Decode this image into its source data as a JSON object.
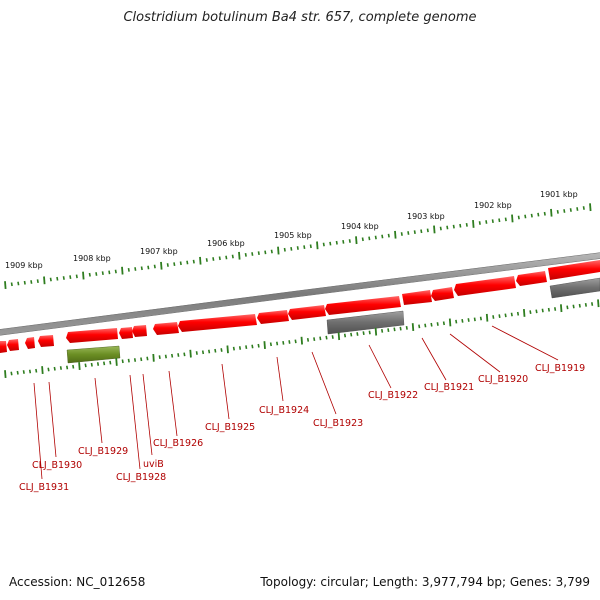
{
  "title": "Clostridium botulinum Ba4 str. 657, complete genome",
  "accession_label": "Accession: NC_012658",
  "summary_label": "Topology: circular; Length: 3,977,794 bp; Genes: 3,799",
  "colors": {
    "backbone": "#8a8a8a",
    "gene_forward": "#ff0000",
    "gene_reverse": "#ff0000",
    "gene_highlight_grey": "#707070",
    "gene_highlight_green": "#6b8e23",
    "tick": "#2e7d1f",
    "label": "#b00000"
  },
  "kbp_labels": [
    "1901 kbp",
    "1902 kbp",
    "1903 kbp",
    "1904 kbp",
    "1905 kbp",
    "1906 kbp",
    "1907 kbp",
    "1908 kbp",
    "1909 kbp"
  ],
  "gene_labels": [
    "CLJ_B1919",
    "CLJ_B1920",
    "CLJ_B1921",
    "CLJ_B1922",
    "CLJ_B1923",
    "CLJ_B1924",
    "CLJ_B1925",
    "CLJ_B1926",
    "uviB",
    "CLJ_B1928",
    "CLJ_B1929",
    "CLJ_B1930",
    "CLJ_B1931"
  ]
}
